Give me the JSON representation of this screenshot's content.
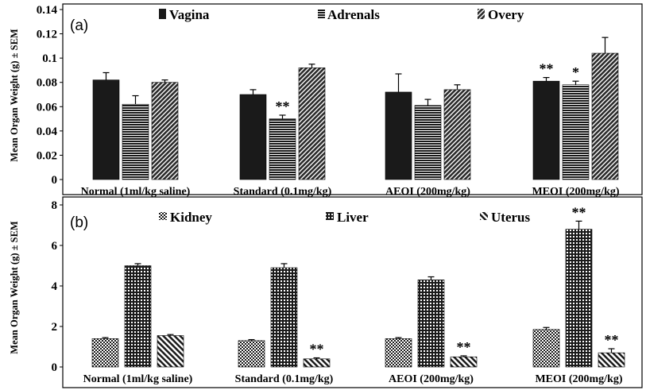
{
  "chart_data": [
    {
      "panel_label": "(a)",
      "type": "bar",
      "ylabel": "Mean Organ Weight (g) ± SEM",
      "ylim": [
        0,
        0.14
      ],
      "yticks": [
        "0",
        "0.02",
        "0.04",
        "0.06",
        "0.08",
        "0.1",
        "0.12",
        "0.14"
      ],
      "categories": [
        "Normal (1ml/kg saline)",
        "Standard (0.1mg/kg)",
        "AEOI (200mg/kg)",
        "MEOI (200mg/kg)"
      ],
      "legend_position": "top",
      "series": [
        {
          "name": "Vagina",
          "pattern": "solid",
          "values": [
            0.082,
            0.07,
            0.072,
            0.081
          ],
          "errors": [
            0.006,
            0.004,
            0.015,
            0.003
          ],
          "sig": [
            "",
            "",
            "",
            "**"
          ]
        },
        {
          "name": "Adrenals",
          "pattern": "horizontal",
          "values": [
            0.062,
            0.05,
            0.061,
            0.078
          ],
          "errors": [
            0.007,
            0.003,
            0.005,
            0.003
          ],
          "sig": [
            "",
            "**",
            "",
            "*"
          ]
        },
        {
          "name": "Overy",
          "pattern": "diagonal",
          "values": [
            0.08,
            0.092,
            0.074,
            0.104
          ],
          "errors": [
            0.002,
            0.003,
            0.004,
            0.013
          ],
          "sig": [
            "",
            "",
            "",
            ""
          ]
        }
      ]
    },
    {
      "panel_label": "(b)",
      "type": "bar",
      "ylabel": "Mean Organ Weight (g) ± SEM",
      "ylim": [
        0,
        8
      ],
      "yticks": [
        "0",
        "2",
        "4",
        "6",
        "8"
      ],
      "categories": [
        "Normal (1ml/kg saline)",
        "Standard (0.1mg/kg)",
        "AEOI (200mg/kg)",
        "MEOI (200mg/kg)"
      ],
      "legend_position": "top",
      "series": [
        {
          "name": "Kidney",
          "pattern": "checker",
          "values": [
            1.4,
            1.3,
            1.4,
            1.85
          ],
          "errors": [
            0.05,
            0.05,
            0.05,
            0.1
          ],
          "sig": [
            "",
            "",
            "",
            ""
          ]
        },
        {
          "name": "Liver",
          "pattern": "grid",
          "values": [
            5.0,
            4.9,
            4.3,
            6.8
          ],
          "errors": [
            0.1,
            0.2,
            0.15,
            0.4
          ],
          "sig": [
            "",
            "",
            "",
            "**"
          ]
        },
        {
          "name": "Uterus",
          "pattern": "backslash",
          "values": [
            1.55,
            0.4,
            0.5,
            0.7
          ],
          "errors": [
            0.05,
            0.05,
            0.05,
            0.2
          ],
          "sig": [
            "",
            "**",
            "**",
            "**"
          ]
        }
      ]
    }
  ]
}
